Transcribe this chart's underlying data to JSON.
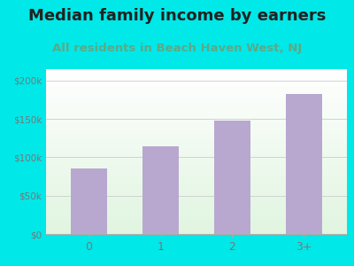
{
  "title": "Median family income by earners",
  "subtitle": "All residents in Beach Haven West, NJ",
  "categories": [
    "0",
    "1",
    "2",
    "3+"
  ],
  "values": [
    85000,
    115000,
    148000,
    183000
  ],
  "bar_color": "#b8a8d0",
  "title_color": "#222222",
  "subtitle_color": "#5aaa88",
  "outer_bg": "#00e8e8",
  "yticks": [
    0,
    50000,
    100000,
    150000,
    200000
  ],
  "ytick_labels": [
    "$0",
    "$50k",
    "$100k",
    "$150k",
    "$200k"
  ],
  "ylim": [
    0,
    215000
  ],
  "title_fontsize": 13,
  "subtitle_fontsize": 9.5,
  "tick_color": "#777777"
}
